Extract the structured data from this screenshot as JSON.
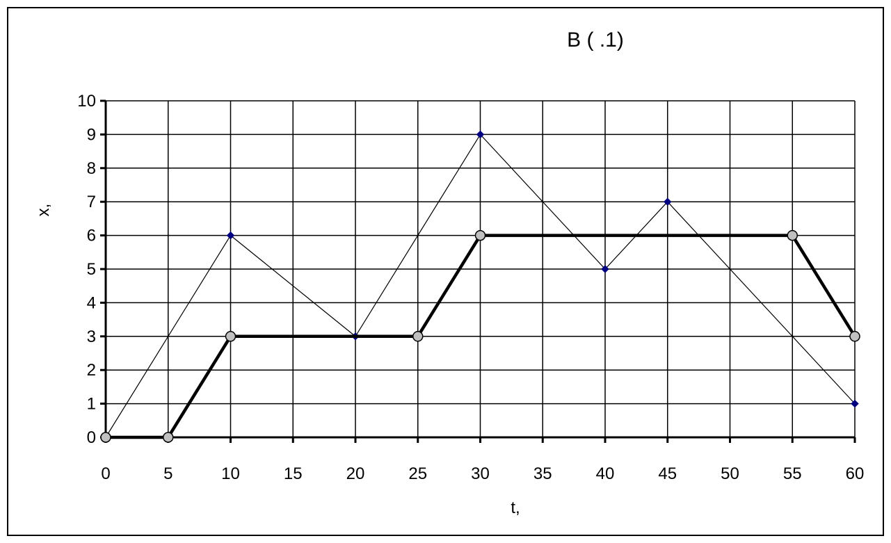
{
  "chart_data": {
    "type": "line",
    "title": "B (      .1)",
    "xlabel": "t,",
    "ylabel": "x,",
    "xlim": [
      0,
      60
    ],
    "ylim": [
      0,
      10
    ],
    "x_ticks": [
      "0",
      "5",
      "10",
      "15",
      "20",
      "25",
      "30",
      "35",
      "40",
      "45",
      "50",
      "55",
      "60"
    ],
    "y_ticks": [
      "0",
      "1",
      "2",
      "3",
      "4",
      "5",
      "6",
      "7",
      "8",
      "9",
      "10"
    ],
    "grid": true,
    "legend": "none",
    "series": [
      {
        "style": "thin-line-diamond",
        "color": "#000080",
        "points": [
          [
            0,
            0
          ],
          [
            10,
            6
          ],
          [
            20,
            3
          ],
          [
            30,
            9
          ],
          [
            40,
            5
          ],
          [
            45,
            7
          ],
          [
            60,
            1
          ]
        ]
      },
      {
        "style": "thick-line-circle",
        "color": "#000000",
        "marker_fill": "#c0c0c0",
        "points": [
          [
            0,
            0
          ],
          [
            5,
            0
          ],
          [
            10,
            3
          ],
          [
            25,
            3
          ],
          [
            30,
            6
          ],
          [
            55,
            6
          ],
          [
            60,
            3
          ]
        ]
      }
    ]
  }
}
